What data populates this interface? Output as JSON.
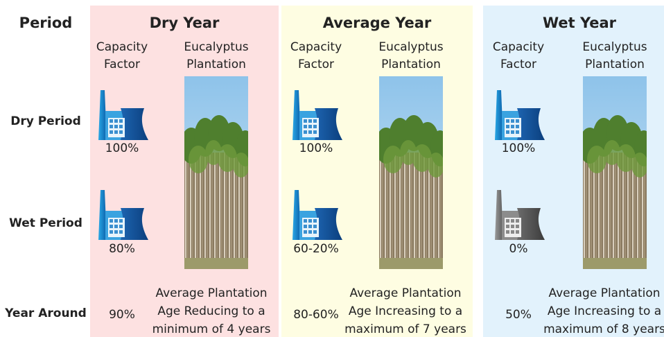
{
  "row_header": "Period",
  "rows": [
    "Dry Period",
    "Wet Period",
    "Year Around"
  ],
  "panels": [
    {
      "title": "Dry Year",
      "capacity_label": [
        "Capacity",
        "Factor"
      ],
      "plantation_label": [
        "Eucalyptus",
        "Plantation"
      ],
      "dry_period": "100%",
      "wet_period": "80%",
      "year_around": "90%",
      "note": [
        "Average Plantation",
        "Age Reducing to a",
        "minimum of 4 years"
      ]
    },
    {
      "title": "Average Year",
      "capacity_label": [
        "Capacity",
        "Factor"
      ],
      "plantation_label": [
        "Eucalyptus",
        "Plantation"
      ],
      "dry_period": "100%",
      "wet_period": "60-20%",
      "year_around": "80-60%",
      "note": [
        "Average Plantation",
        "Age Increasing to a",
        "maximum of 7 years"
      ]
    },
    {
      "title": "Wet Year",
      "capacity_label": [
        "Capacity",
        "Factor"
      ],
      "plantation_label": [
        "Eucalyptus",
        "Plantation"
      ],
      "dry_period": "100%",
      "wet_period": "0%",
      "year_around": "50%",
      "note": [
        "Average Plantation",
        "Age Increasing to a",
        "maximum of 8 years"
      ]
    }
  ]
}
